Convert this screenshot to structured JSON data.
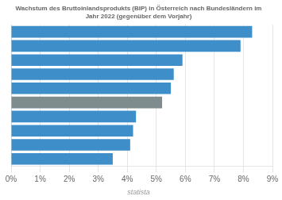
{
  "chart_data": {
    "type": "bar",
    "orientation": "horizontal",
    "title": "Wachstum des Bruttoinlandsprodukts (BIP) in Österreich nach Bundesländern im\nJahr 2022 (gegenüber dem Vorjahr)",
    "categories": [
      null,
      null,
      null,
      null,
      null,
      null,
      null,
      null,
      null,
      null
    ],
    "values": [
      8.3,
      7.9,
      5.9,
      5.6,
      5.5,
      5.2,
      4.3,
      4.2,
      4.1,
      3.5
    ],
    "colors": [
      "#3d8ec9",
      "#3d8ec9",
      "#3d8ec9",
      "#3d8ec9",
      "#3d8ec9",
      "#7f8c8d",
      "#3d8ec9",
      "#3d8ec9",
      "#3d8ec9",
      "#3d8ec9"
    ],
    "xlim": [
      0,
      9
    ],
    "xticks": [
      {
        "value": 0,
        "label": "0%"
      },
      {
        "value": 1,
        "label": "1%"
      },
      {
        "value": 2,
        "label": "2%"
      },
      {
        "value": 3,
        "label": "3%"
      },
      {
        "value": 4,
        "label": "4%"
      },
      {
        "value": 5,
        "label": "5%"
      },
      {
        "value": 6,
        "label": "6%"
      },
      {
        "value": 7,
        "label": "7%"
      },
      {
        "value": 8,
        "label": "8%"
      },
      {
        "value": 9,
        "label": "9%"
      }
    ],
    "grid": true,
    "tick_labels": "x",
    "annotations": [
      "statista"
    ]
  }
}
